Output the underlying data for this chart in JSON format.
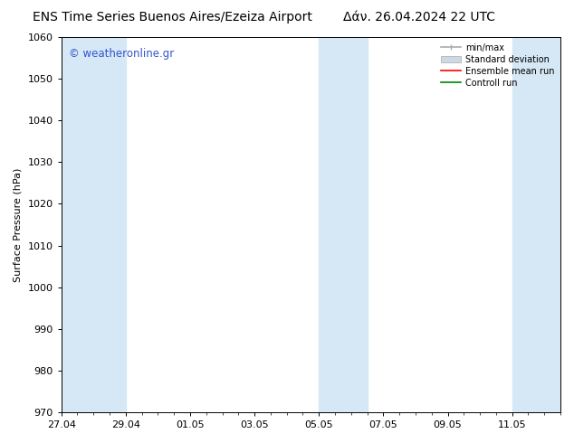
{
  "title_left": "ENS Time Series Buenos Aires/Ezeiza Airport",
  "title_right": "Δάν. 26.04.2024 22 UTC",
  "ylabel": "Surface Pressure (hPa)",
  "ylim": [
    970,
    1060
  ],
  "yticks": [
    970,
    980,
    990,
    1000,
    1010,
    1020,
    1030,
    1040,
    1050,
    1060
  ],
  "xtick_labels": [
    "27.04",
    "29.04",
    "01.05",
    "03.05",
    "05.05",
    "07.05",
    "09.05",
    "11.05"
  ],
  "shaded_color": "#d6e8f5",
  "watermark_text": "© weatheronline.gr",
  "watermark_color": "#3355cc",
  "legend_entries": [
    "min/max",
    "Standard deviation",
    "Ensemble mean run",
    "Controll run"
  ],
  "background_color": "#ffffff",
  "title_fontsize": 10,
  "axis_label_fontsize": 8,
  "tick_fontsize": 8
}
